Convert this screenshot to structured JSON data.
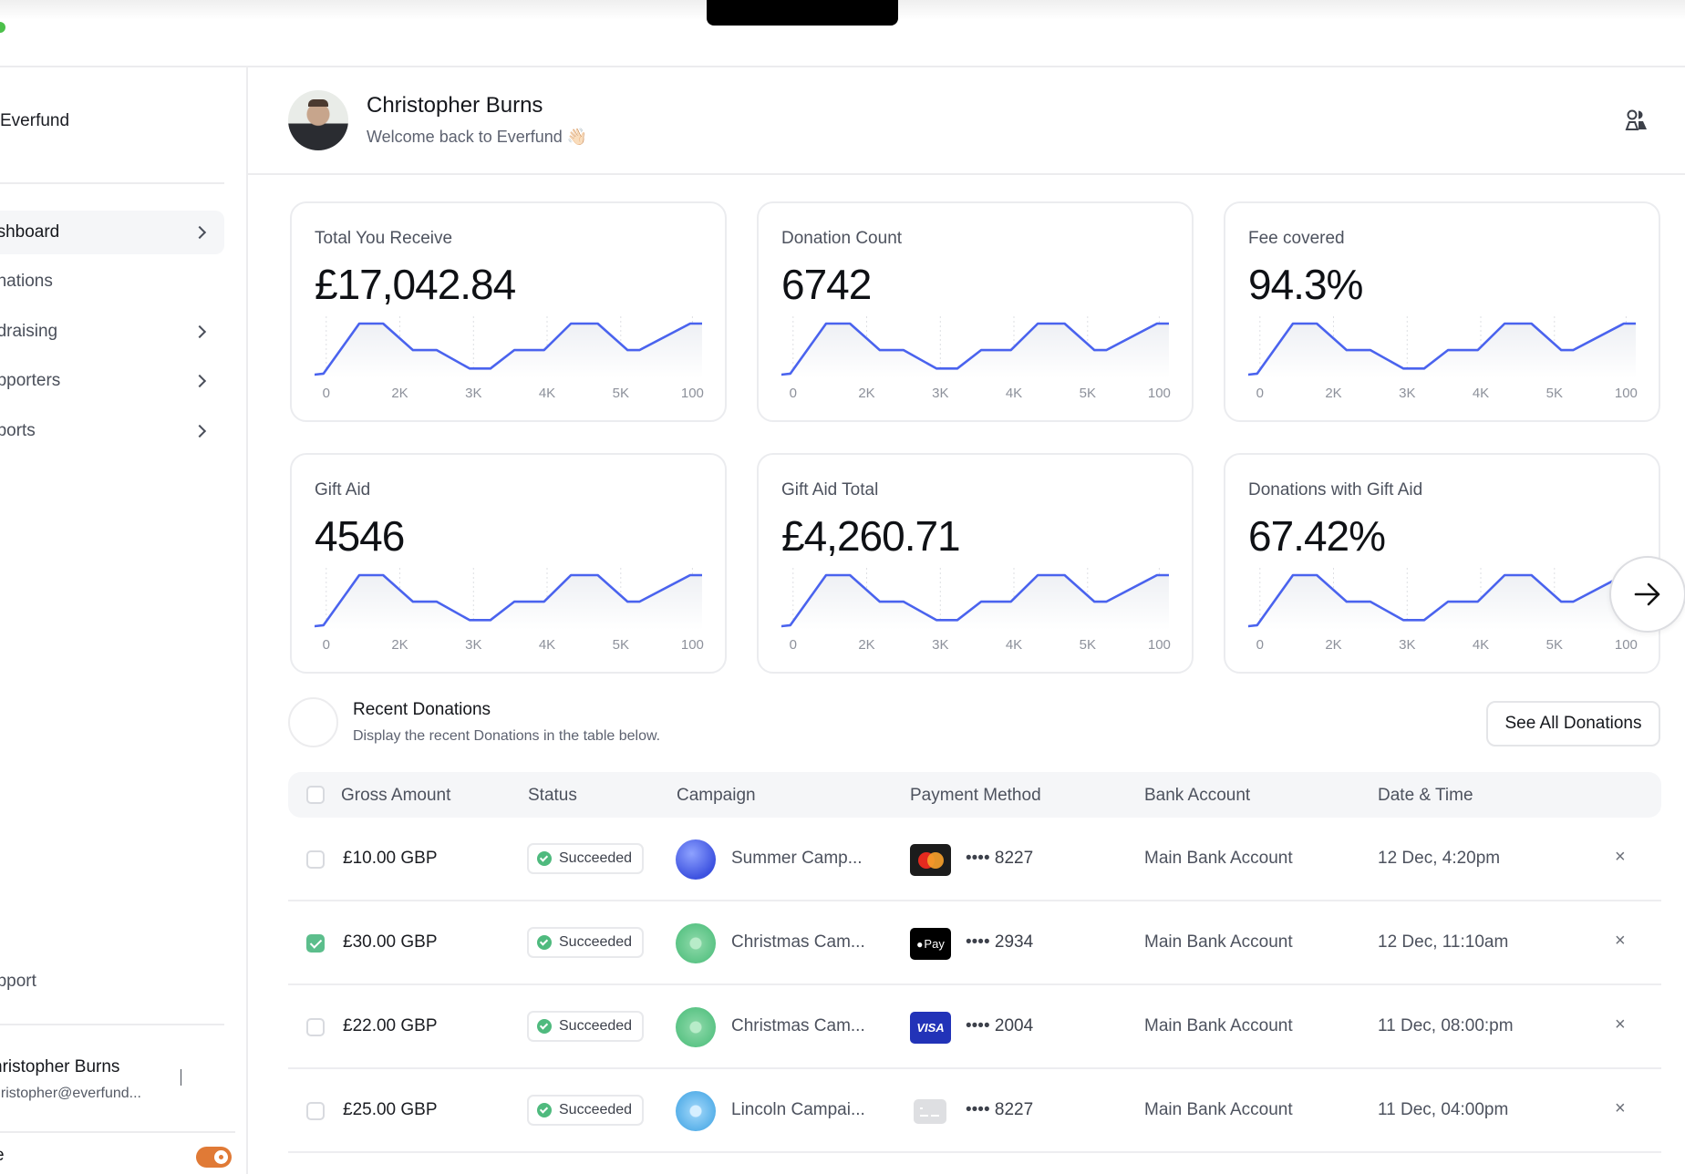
{
  "app": {
    "brand": "Everfund"
  },
  "sidebar": {
    "items": [
      {
        "label": "ashboard",
        "has_chevron": true,
        "active": true
      },
      {
        "label": "onations",
        "has_chevron": false,
        "active": false
      },
      {
        "label": "ndraising",
        "has_chevron": true,
        "active": false
      },
      {
        "label": "upporters",
        "has_chevron": true,
        "active": false
      },
      {
        "label": "eports",
        "has_chevron": true,
        "active": false
      }
    ],
    "support_label": "upport",
    "user": {
      "name": "hristopher Burns",
      "email": "hristopher@everfund..."
    },
    "toggle": {
      "label": "e",
      "on": true,
      "color": "#e07a36"
    }
  },
  "header": {
    "name": "Christopher Burns",
    "subtitle": "Welcome back to Everfund 👋🏻",
    "icon": "people-icon"
  },
  "stats": [
    {
      "title": "Total You Receive",
      "value": "£17,042.84"
    },
    {
      "title": "Donation Count",
      "value": "6742"
    },
    {
      "title": "Fee covered",
      "value": "94.3%"
    },
    {
      "title": "Gift Aid",
      "value": "4546"
    },
    {
      "title": "Gift Aid Total",
      "value": "£4,260.71"
    },
    {
      "title": "Donations with Gift Aid",
      "value": "67.42%"
    }
  ],
  "chart_data": {
    "type": "line",
    "title": "Stat card sparkline (identical on all six cards)",
    "x": [
      "0",
      "",
      "",
      "2K",
      "",
      "",
      "3K",
      "",
      "",
      "4K",
      "",
      "",
      "5K",
      "",
      "100"
    ],
    "tick_labels": [
      "0",
      "2K",
      "3K",
      "4K",
      "5K",
      "100"
    ],
    "values": [
      0,
      100,
      100,
      48,
      48,
      12,
      12,
      48,
      48,
      100,
      100,
      48,
      48,
      100,
      100
    ],
    "xlabel": "",
    "ylabel": "",
    "grid": "vertical dotted",
    "line_color": "#4a63ee"
  },
  "next_button": {
    "icon": "arrow-right-icon"
  },
  "recent": {
    "title": "Recent Donations",
    "subtitle": "Display the recent Donations in the table below.",
    "see_all_label": "See All Donations"
  },
  "table": {
    "headers": [
      "Gross Amount",
      "Status",
      "Campaign",
      "Payment Method",
      "Bank Account",
      "Date & Time"
    ],
    "rows": [
      {
        "checked": false,
        "amount": "£10.00 GBP",
        "status": "Succeeded",
        "campaign": "Summer Camp...",
        "campaign_icon": "blue",
        "payment_icon": "mastercard",
        "card": "•••• 8227",
        "bank": "Main Bank Account",
        "date": "12 Dec, 4:20pm"
      },
      {
        "checked": true,
        "amount": "£30.00 GBP",
        "status": "Succeeded",
        "campaign": "Christmas Cam...",
        "campaign_icon": "green",
        "payment_icon": "apple-pay",
        "card": "•••• 2934",
        "bank": "Main Bank Account",
        "date": "12 Dec, 11:10am"
      },
      {
        "checked": false,
        "amount": "£22.00 GBP",
        "status": "Succeeded",
        "campaign": "Christmas Cam...",
        "campaign_icon": "green",
        "payment_icon": "visa",
        "card": "•••• 2004",
        "bank": "Main Bank Account",
        "date": "11 Dec, 08:00:pm"
      },
      {
        "checked": false,
        "amount": "£25.00 GBP",
        "status": "Succeeded",
        "campaign": "Lincoln Campai...",
        "campaign_icon": "lightblue",
        "payment_icon": "generic-card",
        "card": "•••• 8227",
        "bank": "Main Bank Account",
        "date": "11 Dec, 04:00pm"
      }
    ],
    "apple_pay_text": "Pay",
    "visa_text": "VISA",
    "remove_glyph": "×"
  }
}
